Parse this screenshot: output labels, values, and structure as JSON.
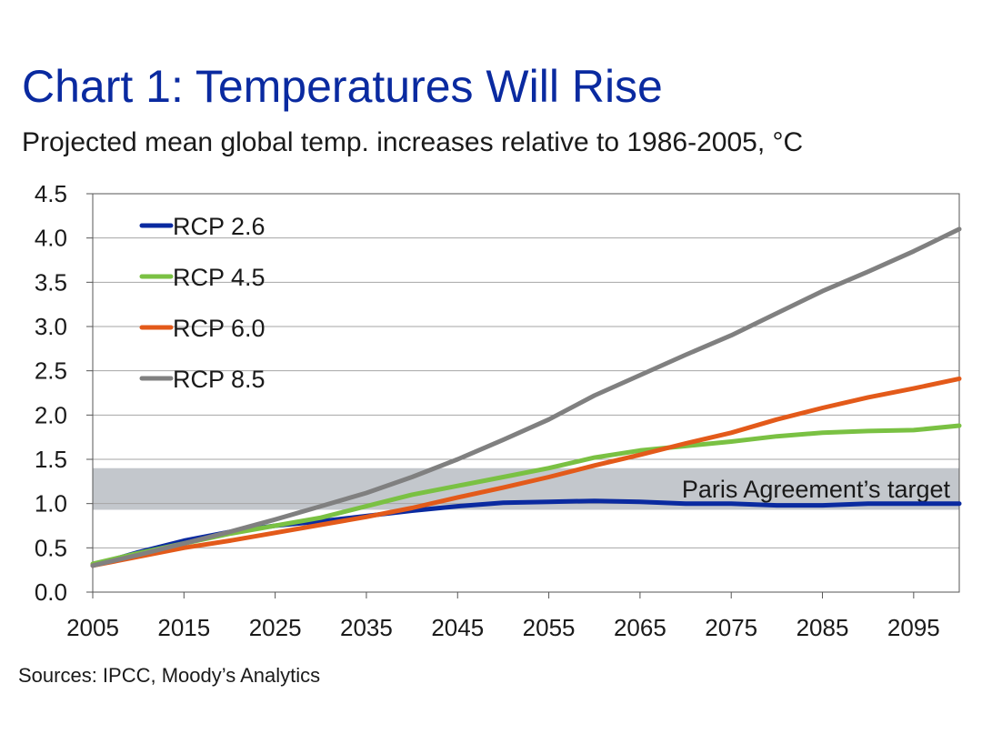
{
  "colors": {
    "title": "#0a2aa0",
    "band": "#c3c7cc",
    "grid": "#a6a6a6"
  },
  "chart_data": {
    "type": "line",
    "title": "Chart 1: Temperatures Will Rise",
    "subtitle": "Projected mean global temp. increases relative to 1986-2005, °C",
    "source": "Sources: IPCC, Moody’s Analytics",
    "xlim": [
      2005,
      2100
    ],
    "ylim": [
      0,
      4.5
    ],
    "x_ticks": [
      "2005",
      "2015",
      "2025",
      "2035",
      "2045",
      "2055",
      "2065",
      "2075",
      "2085",
      "2095"
    ],
    "y_ticks": [
      "0.0",
      "0.5",
      "1.0",
      "1.5",
      "2.0",
      "2.5",
      "3.0",
      "3.5",
      "4.0",
      "4.5"
    ],
    "grid": "horizontal",
    "legend": "top-left",
    "band": {
      "label": "Paris Agreement’s target",
      "y0": 0.93,
      "y1": 1.4
    },
    "x": [
      2005,
      2010,
      2015,
      2020,
      2025,
      2030,
      2035,
      2040,
      2045,
      2050,
      2055,
      2060,
      2065,
      2070,
      2075,
      2080,
      2085,
      2090,
      2095,
      2100
    ],
    "series": [
      {
        "name": "RCP 2.6",
        "color": "#0a2aa0",
        "values": [
          0.3,
          0.45,
          0.58,
          0.68,
          0.75,
          0.8,
          0.86,
          0.92,
          0.97,
          1.01,
          1.02,
          1.03,
          1.02,
          1.0,
          1.0,
          0.98,
          0.98,
          1.0,
          1.0,
          1.0
        ]
      },
      {
        "name": "RCP 4.5",
        "color": "#7ac143",
        "values": [
          0.32,
          0.44,
          0.55,
          0.66,
          0.75,
          0.84,
          0.97,
          1.1,
          1.2,
          1.3,
          1.4,
          1.52,
          1.6,
          1.65,
          1.7,
          1.76,
          1.8,
          1.82,
          1.83,
          1.88
        ]
      },
      {
        "name": "RCP 6.0",
        "color": "#e35a1a",
        "values": [
          0.3,
          0.4,
          0.5,
          0.58,
          0.67,
          0.76,
          0.85,
          0.95,
          1.07,
          1.18,
          1.3,
          1.43,
          1.55,
          1.68,
          1.8,
          1.95,
          2.08,
          2.2,
          2.3,
          2.41
        ]
      },
      {
        "name": "RCP 8.5",
        "color": "#808080",
        "values": [
          0.3,
          0.42,
          0.55,
          0.68,
          0.82,
          0.97,
          1.12,
          1.3,
          1.5,
          1.72,
          1.95,
          2.22,
          2.45,
          2.68,
          2.9,
          3.15,
          3.4,
          3.62,
          3.85,
          4.1
        ]
      }
    ]
  }
}
